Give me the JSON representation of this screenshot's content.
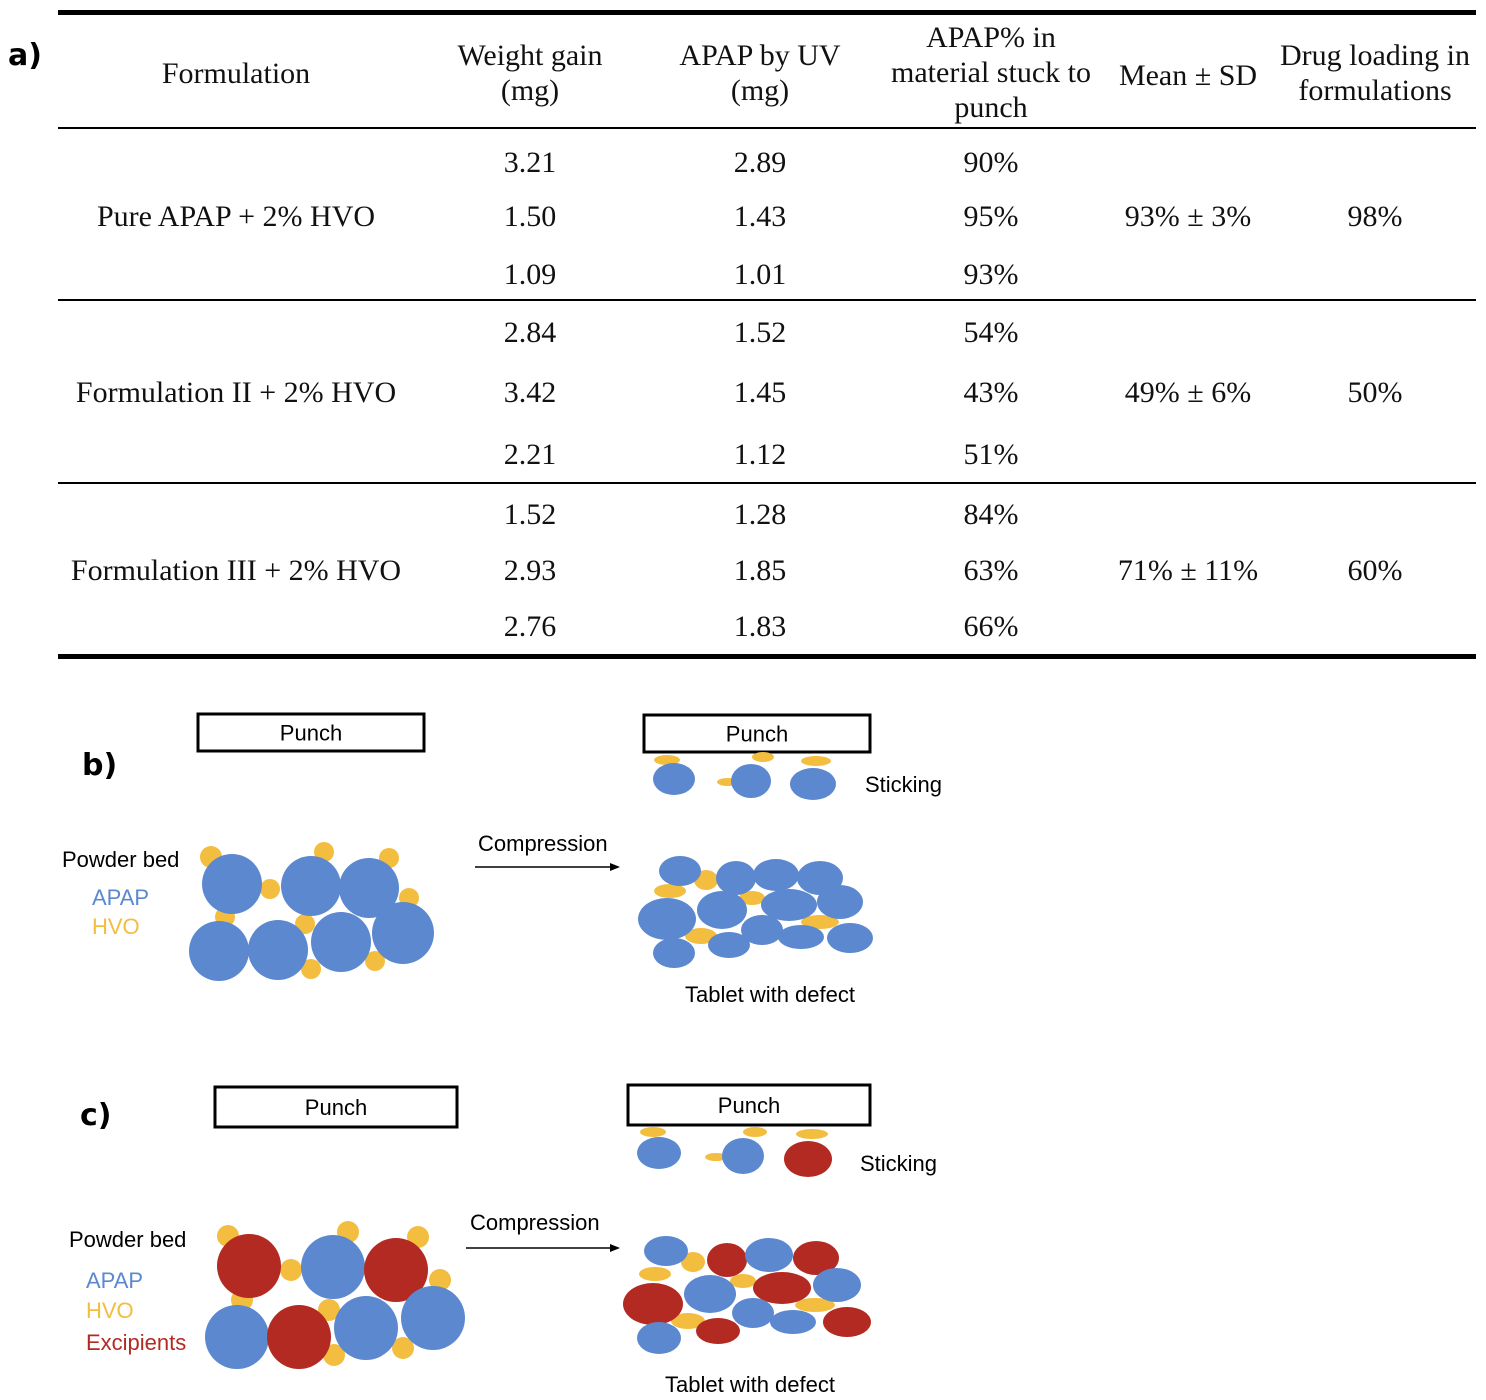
{
  "panels": {
    "a": "a)",
    "b": "b)",
    "c": "c)"
  },
  "table": {
    "headers": [
      "Formulation",
      "Weight gain (mg)",
      "APAP by UV (mg)",
      "APAP% in material stuck to punch",
      "Mean ± SD",
      "Drug loading in formulations"
    ],
    "groups": [
      {
        "formulation": "Pure APAP + 2% HVO",
        "rows": [
          {
            "weight_gain": "3.21",
            "apap_uv": "2.89",
            "apap_pct": "90%"
          },
          {
            "weight_gain": "1.50",
            "apap_uv": "1.43",
            "apap_pct": "95%"
          },
          {
            "weight_gain": "1.09",
            "apap_uv": "1.01",
            "apap_pct": "93%"
          }
        ],
        "mean_sd": "93% ± 3%",
        "drug_loading": "98%"
      },
      {
        "formulation": "Formulation II + 2% HVO",
        "rows": [
          {
            "weight_gain": "2.84",
            "apap_uv": "1.52",
            "apap_pct": "54%"
          },
          {
            "weight_gain": "3.42",
            "apap_uv": "1.45",
            "apap_pct": "43%"
          },
          {
            "weight_gain": "2.21",
            "apap_uv": "1.12",
            "apap_pct": "51%"
          }
        ],
        "mean_sd": "49% ± 6%",
        "drug_loading": "50%"
      },
      {
        "formulation": "Formulation III + 2% HVO",
        "rows": [
          {
            "weight_gain": "1.52",
            "apap_uv": "1.28",
            "apap_pct": "84%"
          },
          {
            "weight_gain": "2.93",
            "apap_uv": "1.85",
            "apap_pct": "63%"
          },
          {
            "weight_gain": "2.76",
            "apap_uv": "1.83",
            "apap_pct": "66%"
          }
        ],
        "mean_sd": "71% ± 11%",
        "drug_loading": "60%"
      }
    ]
  },
  "diagram_b": {
    "punch_label": "Punch",
    "powder_bed_label": "Powder bed",
    "legend": [
      "APAP",
      "HVO"
    ],
    "compression_label": "Compression",
    "sticking_label": "Sticking",
    "tablet_label": "Tablet with defect"
  },
  "diagram_c": {
    "punch_label": "Punch",
    "powder_bed_label": "Powder bed",
    "legend": [
      "APAP",
      "HVO",
      "Excipients"
    ],
    "compression_label": "Compression",
    "sticking_label": "Sticking",
    "tablet_label": "Tablet with defect"
  },
  "colors": {
    "apap": "#5b88cf",
    "hvo": "#f3bd3f",
    "excipients": "#b32a22"
  }
}
